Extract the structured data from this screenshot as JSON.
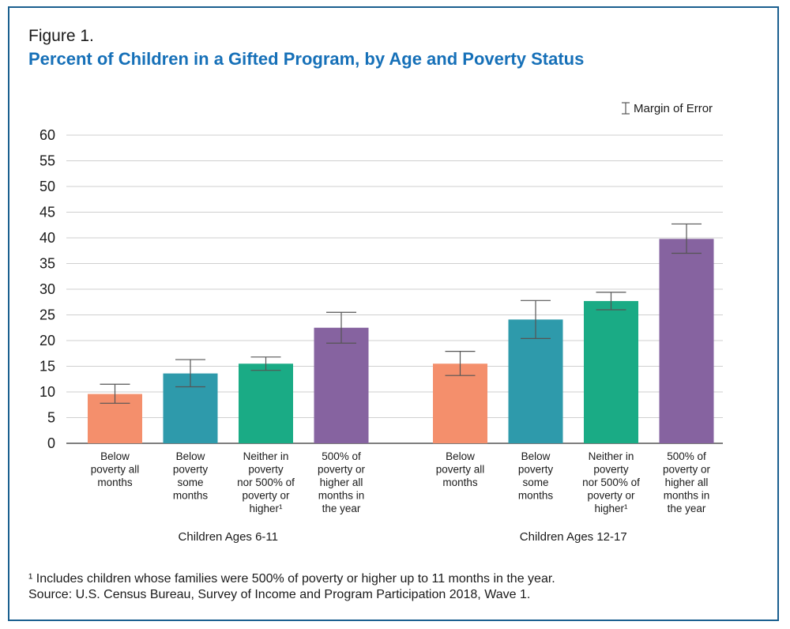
{
  "figure_label": "Figure 1.",
  "title": "Percent of Children in a Gifted Program, by Age and Poverty Status",
  "legend": {
    "moe_label": "Margin of Error"
  },
  "footnotes": {
    "note1": "¹ Includes children whose families were 500% of poverty or higher up to 11 months in the year.",
    "source": "Source: U.S. Census Bureau, Survey of Income and Program Participation 2018, Wave 1."
  },
  "chart_data": {
    "type": "bar",
    "title": "Percent of Children in a Gifted Program, by Age and Poverty Status",
    "xlabel": "",
    "ylabel": "",
    "ylim": [
      0,
      60
    ],
    "yticks": [
      0,
      5,
      10,
      15,
      20,
      25,
      30,
      35,
      40,
      45,
      50,
      55,
      60
    ],
    "grid": true,
    "legend_position": "top-right",
    "categories": [
      [
        "Below",
        "poverty all",
        "months"
      ],
      [
        "Below",
        "poverty",
        "some",
        "months"
      ],
      [
        "Neither in",
        "poverty",
        "nor 500% of",
        "poverty or",
        "higher¹"
      ],
      [
        "500% of",
        "poverty or",
        "higher all",
        "months in",
        "the year"
      ]
    ],
    "category_colors": [
      "#f48f6c",
      "#2e9aab",
      "#1aab85",
      "#8663a0"
    ],
    "groups": [
      {
        "name": "Children Ages 6-11",
        "values": [
          9.6,
          13.6,
          15.5,
          22.5
        ],
        "moe_low": [
          7.8,
          11.0,
          14.2,
          19.5
        ],
        "moe_high": [
          11.5,
          16.3,
          16.8,
          25.5
        ]
      },
      {
        "name": "Children Ages 12-17",
        "values": [
          15.5,
          24.1,
          27.7,
          39.8
        ],
        "moe_low": [
          13.2,
          20.4,
          26.0,
          37.0
        ],
        "moe_high": [
          17.9,
          27.8,
          29.4,
          42.7
        ]
      }
    ]
  }
}
